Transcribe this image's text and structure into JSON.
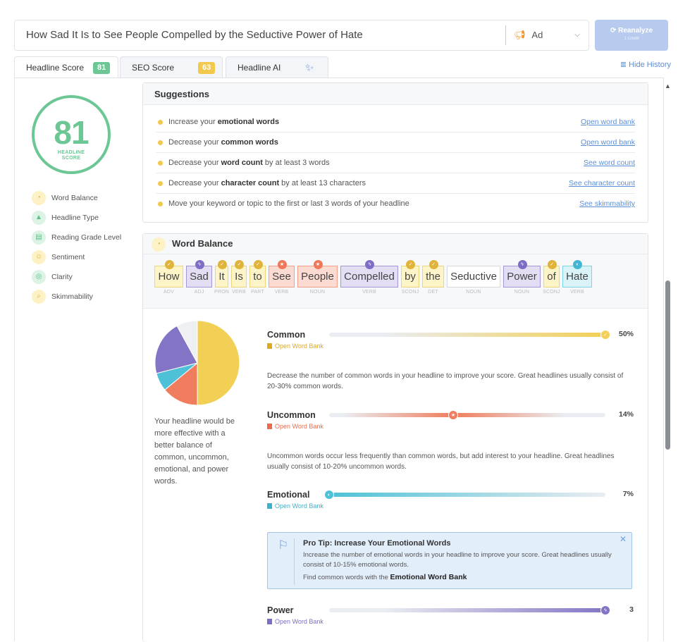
{
  "headline": {
    "value": "How Sad It Is to See People Compelled by the Seductive Power of Hate"
  },
  "type_select": {
    "value": "Ad",
    "icon": "megaphone-icon"
  },
  "reanalyze": {
    "label": "Reanalyze",
    "sub": "1 Credit"
  },
  "tabs": [
    {
      "label": "Headline Score",
      "badge": "81",
      "badge_color": "#6cc794"
    },
    {
      "label": "SEO Score",
      "badge": "63",
      "badge_color": "#f2c94c"
    },
    {
      "label": "Headline AI",
      "icon": "magic-wand-icon"
    }
  ],
  "hide_history": "Hide History",
  "score": {
    "value": "81",
    "label_line1": "HEADLINE",
    "label_line2": "SCORE"
  },
  "sidebar": [
    {
      "label": "Word Balance",
      "icon": "pie-icon",
      "color": "#fdf1c6",
      "fg": "#e0b43a"
    },
    {
      "label": "Headline Type",
      "icon": "shapes-icon",
      "color": "#dcf3e6",
      "fg": "#5bbf88"
    },
    {
      "label": "Reading Grade Level",
      "icon": "book-icon",
      "color": "#dcf3e6",
      "fg": "#5bbf88"
    },
    {
      "label": "Sentiment",
      "icon": "smile-icon",
      "color": "#fdf1c6",
      "fg": "#e0b43a"
    },
    {
      "label": "Clarity",
      "icon": "target-icon",
      "color": "#dcf3e6",
      "fg": "#5bbf88"
    },
    {
      "label": "Skimmability",
      "icon": "search-icon",
      "color": "#fdf1c6",
      "fg": "#e0b43a"
    }
  ],
  "suggestions": {
    "title": "Suggestions",
    "items": [
      {
        "pre": "Increase your ",
        "bold": "emotional words",
        "post": "",
        "link": "Open word bank"
      },
      {
        "pre": "Decrease your ",
        "bold": "common words",
        "post": "",
        "link": "Open word bank"
      },
      {
        "pre": "Decrease your ",
        "bold": "word count",
        "post": " by at least 3 words",
        "link": "See word count"
      },
      {
        "pre": "Decrease your ",
        "bold": "character count",
        "post": " by at least 13 characters",
        "link": "See character count"
      },
      {
        "pre": "Move your keyword or topic to the first or last 3 words of your headline",
        "bold": "",
        "post": "",
        "link": "See skimmability"
      }
    ]
  },
  "word_balance": {
    "title": "Word Balance",
    "words": [
      {
        "text": "How",
        "pos": "ADV",
        "type": "common"
      },
      {
        "text": "Sad",
        "pos": "ADJ",
        "type": "power"
      },
      {
        "text": "It",
        "pos": "PRON",
        "type": "common"
      },
      {
        "text": "Is",
        "pos": "VERB",
        "type": "common"
      },
      {
        "text": "to",
        "pos": "PART",
        "type": "common"
      },
      {
        "text": "See",
        "pos": "VERB",
        "type": "uncommon"
      },
      {
        "text": "People",
        "pos": "NOUN",
        "type": "uncommon"
      },
      {
        "text": "Compelled",
        "pos": "VERB",
        "type": "power"
      },
      {
        "text": "by",
        "pos": "SCONJ",
        "type": "common"
      },
      {
        "text": "the",
        "pos": "DET",
        "type": "common"
      },
      {
        "text": "Seductive",
        "pos": "NOUN",
        "type": "none"
      },
      {
        "text": "Power",
        "pos": "NOUN",
        "type": "power"
      },
      {
        "text": "of",
        "pos": "SCONJ",
        "type": "common"
      },
      {
        "text": "Hate",
        "pos": "VERB",
        "type": "emotional"
      }
    ],
    "pie_text": "Your headline would be more effective with a better balance of common, uncommon, emotional, and power words.",
    "pie": [
      {
        "name": "Common",
        "value": 50,
        "color": "#f2cf55"
      },
      {
        "name": "Uncommon",
        "value": 14,
        "color": "#f07d5d"
      },
      {
        "name": "Emotional",
        "value": 7,
        "color": "#4ec1d8"
      },
      {
        "name": "Power",
        "value": 21,
        "color": "#8474c6"
      },
      {
        "name": "Other",
        "value": 8,
        "color": "#eef0f3"
      }
    ],
    "categories": [
      {
        "name": "Common",
        "bank": "Open Word Bank",
        "value": "50%",
        "level": 1.0,
        "color": "#f2cf55",
        "bank_color": "#e0a81f",
        "desc": "Decrease the number of common words in your headline to improve your score. Great headlines usually consist of 20-30% common words."
      },
      {
        "name": "Uncommon",
        "bank": "Open Word Bank",
        "value": "14%",
        "level": 0.45,
        "color": "#f07d5d",
        "bank_color": "#ee6a4a",
        "desc": "Uncommon words occur less frequently than common words, but add interest to your headline. Great headlines usually consist of 10-20% uncommon words."
      },
      {
        "name": "Emotional",
        "bank": "Open Word Bank",
        "value": "7%",
        "level": 0.0,
        "color": "#4ec1d8",
        "bank_color": "#3ab1cf",
        "desc": ""
      },
      {
        "name": "Power",
        "bank": "Open Word Bank",
        "value": "3",
        "level": 1.0,
        "color": "#8474c6",
        "bank_color": "#7e6cc5",
        "desc": ""
      }
    ],
    "protip": {
      "title": "Pro Tip: Increase Your Emotional Words",
      "body": "Increase the number of emotional words in your headline to improve your score. Great headlines usually consist of 10-15% emotional words.",
      "find_pre": "Find common words with the ",
      "find_bold": "Emotional Word Bank"
    }
  }
}
